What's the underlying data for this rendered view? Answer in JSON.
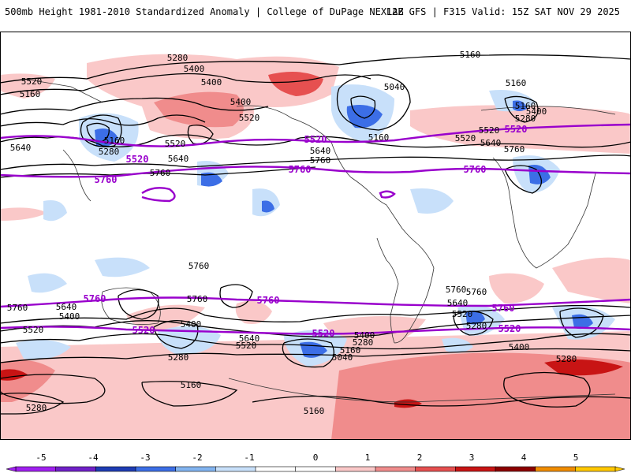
{
  "header": {
    "product": "500mb Height 1981-2010 Standardized Anomaly | College of DuPage NEXLAB",
    "run": "12Z GFS | F315 Valid: 15Z SAT NOV 29 2025"
  },
  "colorbar": {
    "ticks": [
      "-5",
      "-4",
      "-3",
      "-2",
      "-1",
      "0",
      "1",
      "2",
      "3",
      "4",
      "5"
    ],
    "bins": [
      {
        "color": "#a020f0"
      },
      {
        "color": "#7020c8"
      },
      {
        "color": "#1e3cb4"
      },
      {
        "color": "#3c6ee6"
      },
      {
        "color": "#82b4f0"
      },
      {
        "color": "#c8e0fa"
      },
      {
        "color": "#ffffff"
      },
      {
        "color": "#ffffff"
      },
      {
        "color": "#fac8c8"
      },
      {
        "color": "#f08c8c"
      },
      {
        "color": "#e65050"
      },
      {
        "color": "#c81414"
      },
      {
        "color": "#8c0000"
      },
      {
        "color": "#f08c00"
      },
      {
        "color": "#ffc800"
      }
    ]
  },
  "map": {
    "highlight_color": "#9900cc",
    "contour_labels": [
      "5280",
      "5400",
      "5160",
      "5160",
      "5040",
      "5160",
      "5400",
      "5400",
      "5520",
      "5160",
      "5280",
      "5640",
      "5520",
      "5520",
      "5640",
      "5760",
      "5760",
      "5520",
      "5640",
      "5760",
      "5520",
      "5640",
      "5160",
      "5760",
      "5520",
      "5160",
      "5280",
      "5400",
      "5640",
      "5760",
      "5640",
      "5400",
      "5520",
      "5760",
      "5760",
      "5640",
      "5520",
      "5280",
      "5400",
      "5280",
      "5760",
      "5760",
      "5640",
      "5520",
      "5400",
      "5280",
      "5160",
      "5040",
      "5640",
      "5760",
      "5520",
      "5520",
      "5400",
      "5280",
      "5280",
      "5160",
      "5160",
      "5160",
      "5280"
    ],
    "highlight_labels": [
      "5520",
      "5760",
      "5520",
      "5520",
      "5760",
      "5760",
      "5760",
      "5760",
      "5520",
      "5520",
      "5520"
    ]
  }
}
